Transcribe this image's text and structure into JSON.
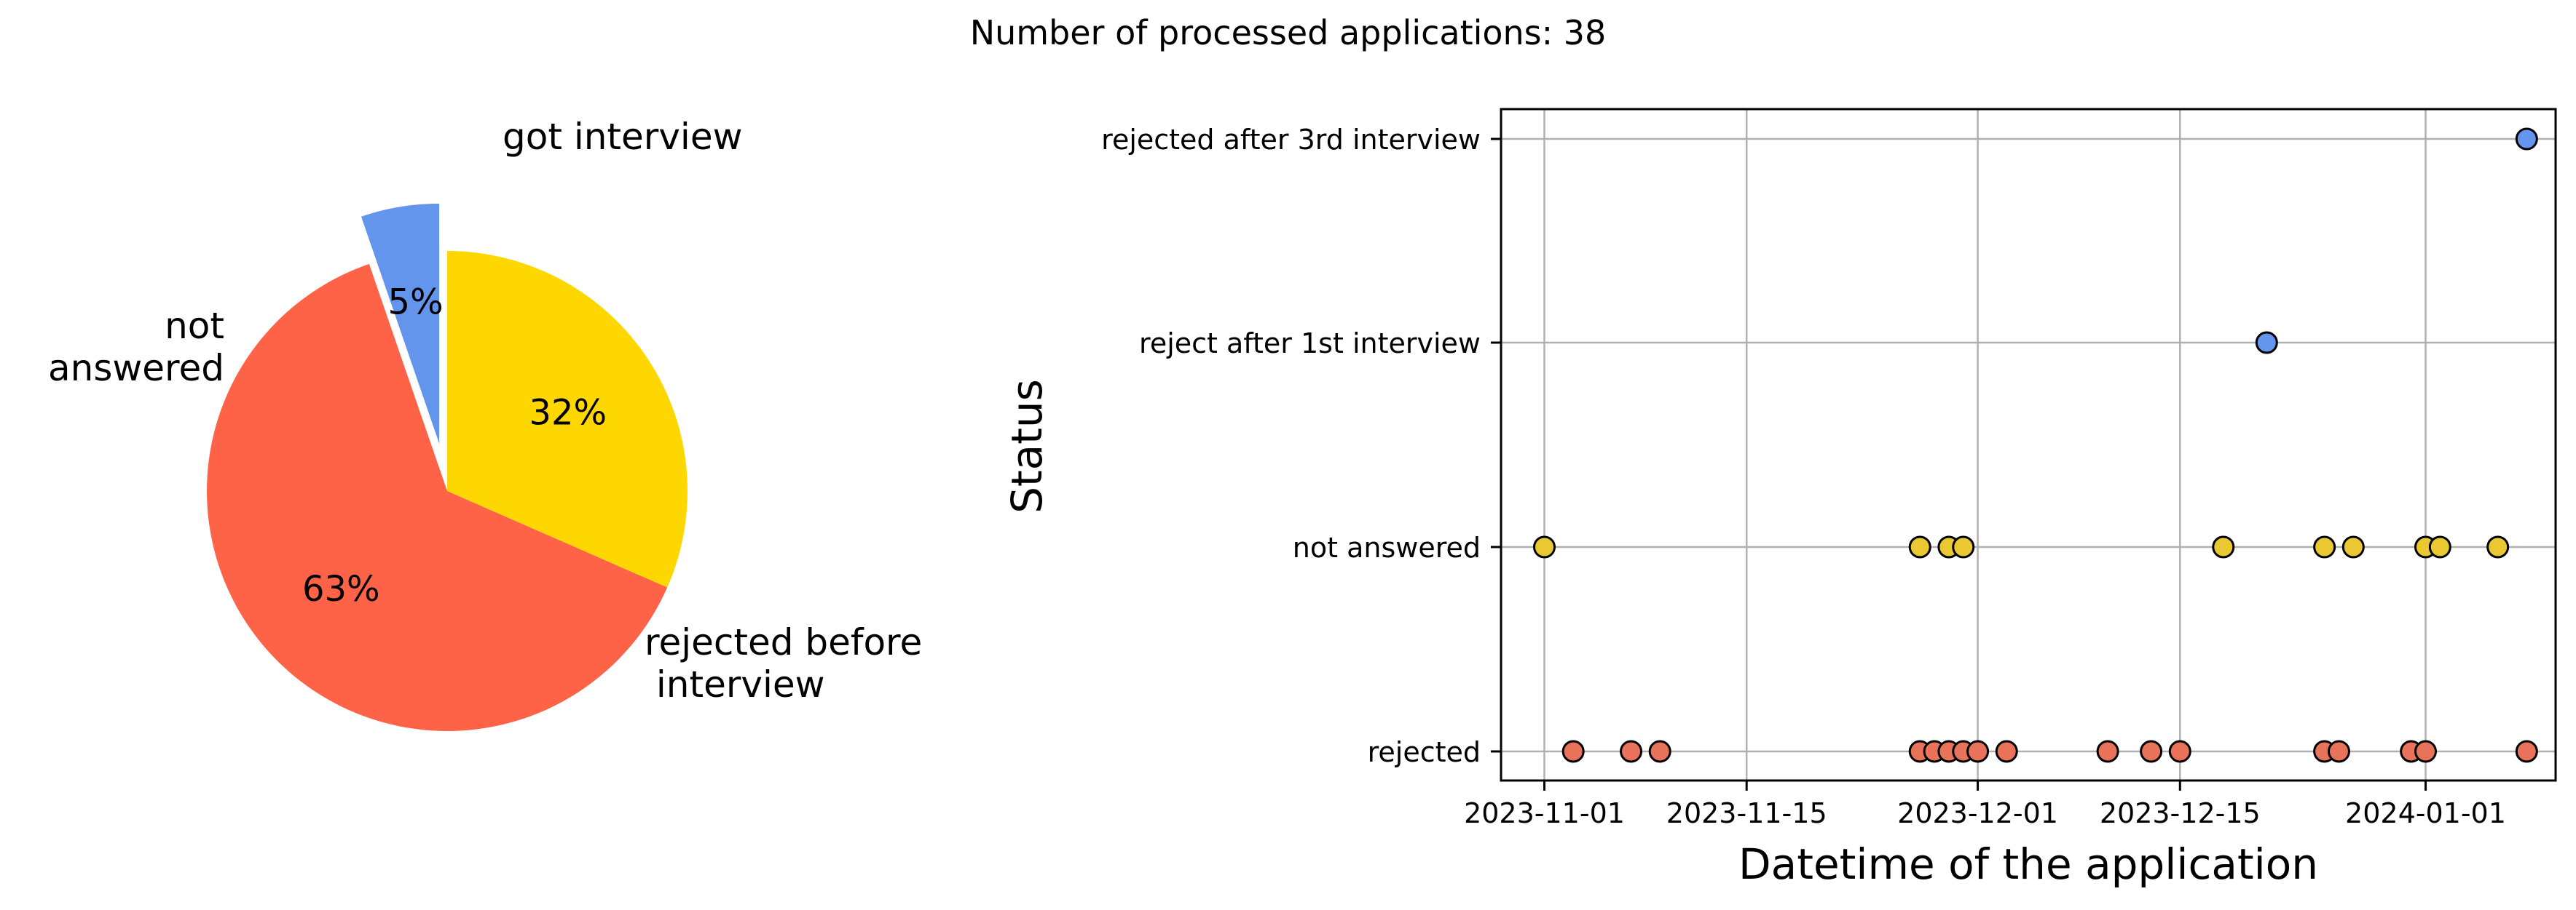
{
  "page": {
    "title": "Number of processed applications: 38"
  },
  "chart_data": [
    {
      "type": "pie",
      "labels": [
        "got interview",
        "rejected before\n interview",
        "not\nanswered"
      ],
      "values": [
        2,
        24,
        12
      ],
      "percent_labels": [
        "5%",
        "63%",
        "32%"
      ],
      "colors": [
        "#6495ED",
        "#FF6347",
        "#FFD700"
      ],
      "explode": [
        0.2,
        0,
        0
      ],
      "start": "top, counter-clockwise"
    },
    {
      "type": "scatter",
      "xlabel": "Datetime of the application",
      "ylabel": "Status",
      "x_ticks": [
        "2023-11-01",
        "2023-11-15",
        "2023-12-01",
        "2023-12-15",
        "2024-01-01"
      ],
      "y_categories": [
        "rejected",
        "not answered",
        "reject after 1st interview",
        "rejected after 3rd interview"
      ],
      "xlim": [
        "2023-10-29",
        "2024-01-10"
      ],
      "grid": true,
      "series": [
        {
          "status": "rejected",
          "color": "#E8735A",
          "dates": [
            "2023-11-03",
            "2023-11-07",
            "2023-11-09",
            "2023-11-27",
            "2023-11-28",
            "2023-11-29",
            "2023-11-30",
            "2023-12-01",
            "2023-12-03",
            "2023-12-10",
            "2023-12-13",
            "2023-12-15",
            "2023-12-25",
            "2023-12-26",
            "2023-12-31",
            "2024-01-01",
            "2024-01-08"
          ]
        },
        {
          "status": "not answered",
          "color": "#EAC832",
          "dates": [
            "2023-11-01",
            "2023-11-27",
            "2023-11-29",
            "2023-11-30",
            "2023-12-18",
            "2023-12-25",
            "2023-12-27",
            "2024-01-01",
            "2024-01-02",
            "2024-01-06"
          ]
        },
        {
          "status": "reject after 1st interview",
          "color": "#6495ED",
          "dates": [
            "2023-12-21"
          ]
        },
        {
          "status": "rejected after 3rd interview",
          "color": "#6495ED",
          "dates": [
            "2024-01-08"
          ]
        }
      ]
    }
  ]
}
